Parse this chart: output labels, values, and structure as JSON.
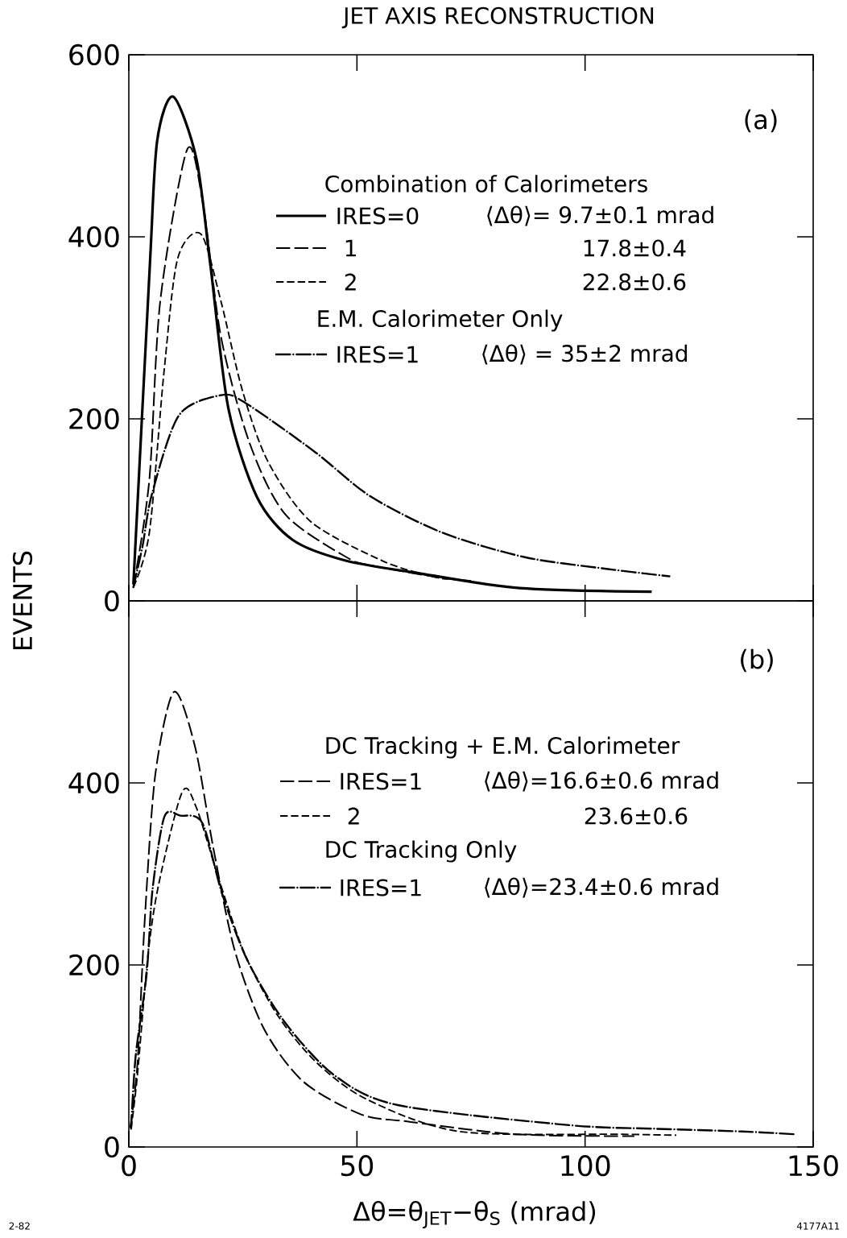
{
  "chart_data": [
    {
      "type": "line",
      "title": "JET AXIS RECONSTRUCTION",
      "ylabel": "EVENTS",
      "xlim": [
        0,
        150
      ],
      "ylim": [
        0,
        600
      ],
      "xticks": [
        0,
        50,
        100,
        150
      ],
      "yticks": [
        0,
        200,
        400,
        600
      ],
      "tick_labels": "y",
      "legend": "top",
      "annotations": [
        "(a)",
        "Combination of Calorimeters",
        "⟨Δθ⟩= 9.7±0.1 mrad",
        "17.8±0.4",
        "22.8±0.6",
        "E.M. Calorimeter Only",
        "⟨Δθ⟩ = 35±2 mrad"
      ],
      "series": [
        {
          "name": "IRES=0",
          "color": "#000000",
          "line_style": "solid",
          "x": [
            1,
            4.6,
            6.2,
            9.7,
            14.8,
            17.9,
            21.8,
            28.1,
            35.9,
            47.7,
            64,
            85.7,
            114.6
          ],
          "values": [
            18,
            368,
            505,
            554,
            486,
            368,
            212,
            114,
            67,
            44,
            30,
            14,
            10
          ]
        },
        {
          "name": "1",
          "color": "#000000",
          "line_style": "long dashed",
          "x": [
            1,
            4.5,
            6.9,
            12.8,
            16.3,
            20.2,
            26.5,
            34.3,
            47.7,
            53,
            67.6,
            75
          ],
          "values": [
            15,
            133,
            330,
            496,
            435,
            290,
            173,
            95,
            48,
            39,
            26,
            22
          ]
        },
        {
          "name": "2",
          "color": "#000000",
          "line_style": "dashed",
          "x": [
            1,
            4.5,
            7.7,
            10.7,
            15.8,
            20.2,
            24.9,
            30.5,
            39.9,
            55.6,
            66.2,
            70
          ],
          "values": [
            15,
            75,
            251,
            376,
            403,
            329,
            231,
            153,
            87,
            44,
            27,
            24
          ]
        },
        {
          "name": "IRES=1",
          "color": "#000000",
          "line_style": "dash dot",
          "x": [
            1,
            3,
            5.1,
            11,
            20.2,
            25.4,
            40.7,
            52.9,
            68.7,
            86.8,
            105,
            118.5
          ],
          "values": [
            15,
            60,
            118,
            204,
            226,
            218,
            164,
            115,
            75,
            48,
            35,
            27
          ]
        }
      ]
    },
    {
      "type": "line",
      "xlabel": "Δθ=θ$_{JET}$−θ$_{S}$ (mrad)",
      "xlim": [
        0,
        150
      ],
      "ylim": [
        0,
        600
      ],
      "xticks": [
        0,
        50,
        100,
        150
      ],
      "yticks": [
        0,
        200,
        400
      ],
      "legend": "top",
      "annotations": [
        "(b)",
        "DC Tracking + E.M. Calorimeter",
        "⟨Δθ⟩=16.6±0.6 mrad",
        "23.6±0.6",
        "DC Tracking Only",
        "⟨Δθ⟩=23.4±0.6 mrad",
        "2-82",
        "4177A11"
      ],
      "series": [
        {
          "name": "IRES=1",
          "color": "#000000",
          "line_style": "long dashed",
          "x": [
            0.3,
            1.9,
            3.5,
            5.8,
            9.9,
            14.5,
            18.5,
            23.1,
            29.5,
            38.2,
            50.8,
            61,
            84.8,
            110.8
          ],
          "values": [
            21,
            92,
            250,
            409,
            500,
            440,
            329,
            218,
            131,
            72,
            36,
            28,
            14,
            12
          ]
        },
        {
          "name": "2",
          "color": "#000000",
          "line_style": "dashed",
          "x": [
            0.5,
            1.9,
            4.2,
            6.6,
            11.7,
            14.8,
            20,
            25.5,
            32.7,
            41.3,
            52.3,
            72.5,
            108,
            120
          ],
          "values": [
            20,
            80,
            211,
            290,
            390,
            373,
            290,
            211,
            144,
            92,
            52,
            17,
            14,
            13
          ]
        },
        {
          "name": "IRES=1",
          "color": "#000000",
          "line_style": "dash dot",
          "x": [
            0.5,
            1.5,
            3.9,
            5.2,
            7.8,
            11.3,
            16.1,
            20.4,
            26,
            34.2,
            45,
            59,
            96.5,
            115.7,
            134.5,
            146
          ],
          "values": [
            20,
            100,
            190,
            283,
            363,
            364,
            356,
            279,
            205,
            137,
            79,
            46,
            24,
            20,
            17,
            14
          ]
        }
      ]
    }
  ]
}
